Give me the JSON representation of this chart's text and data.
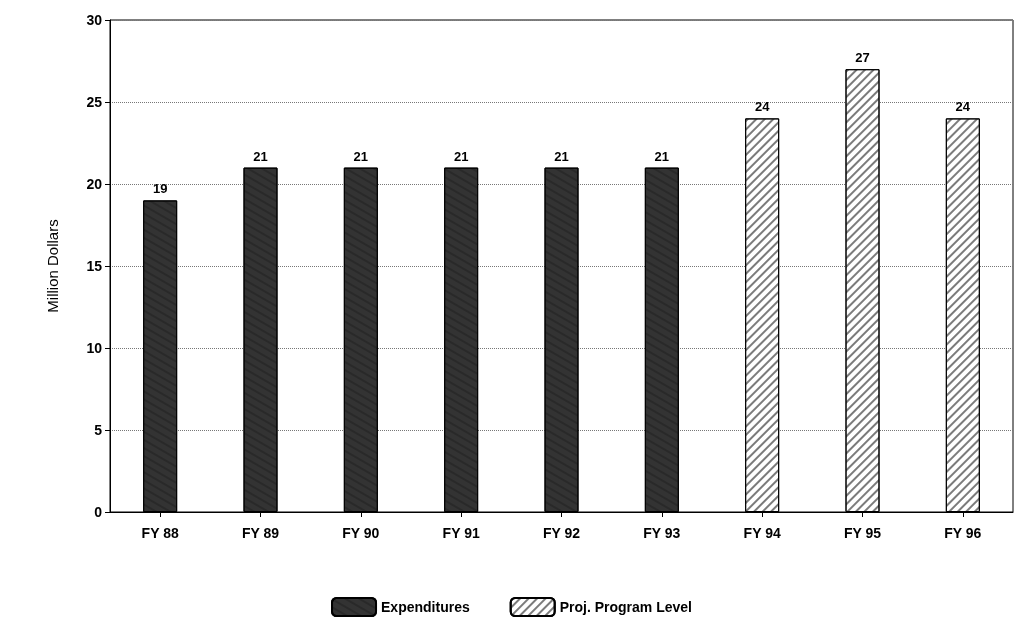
{
  "chart_data": {
    "type": "bar",
    "ylabel": "Million Dollars",
    "categories": [
      "FY 88",
      "FY 89",
      "FY 90",
      "FY 91",
      "FY 92",
      "FY 93",
      "FY 94",
      "FY 95",
      "FY 96"
    ],
    "series": [
      {
        "name": "Expenditures",
        "color": "#333333",
        "values": [
          19,
          21,
          21,
          21,
          21,
          21,
          null,
          null,
          null
        ]
      },
      {
        "name": "Proj. Program Level",
        "color": "#ffffff",
        "values": [
          null,
          null,
          null,
          null,
          null,
          null,
          24,
          27,
          24
        ]
      }
    ],
    "ylim": [
      0,
      30
    ],
    "yticks": [
      0,
      5,
      10,
      15,
      20,
      25,
      30
    ],
    "grid": "y",
    "legend": "bottom",
    "data_labels": true
  }
}
